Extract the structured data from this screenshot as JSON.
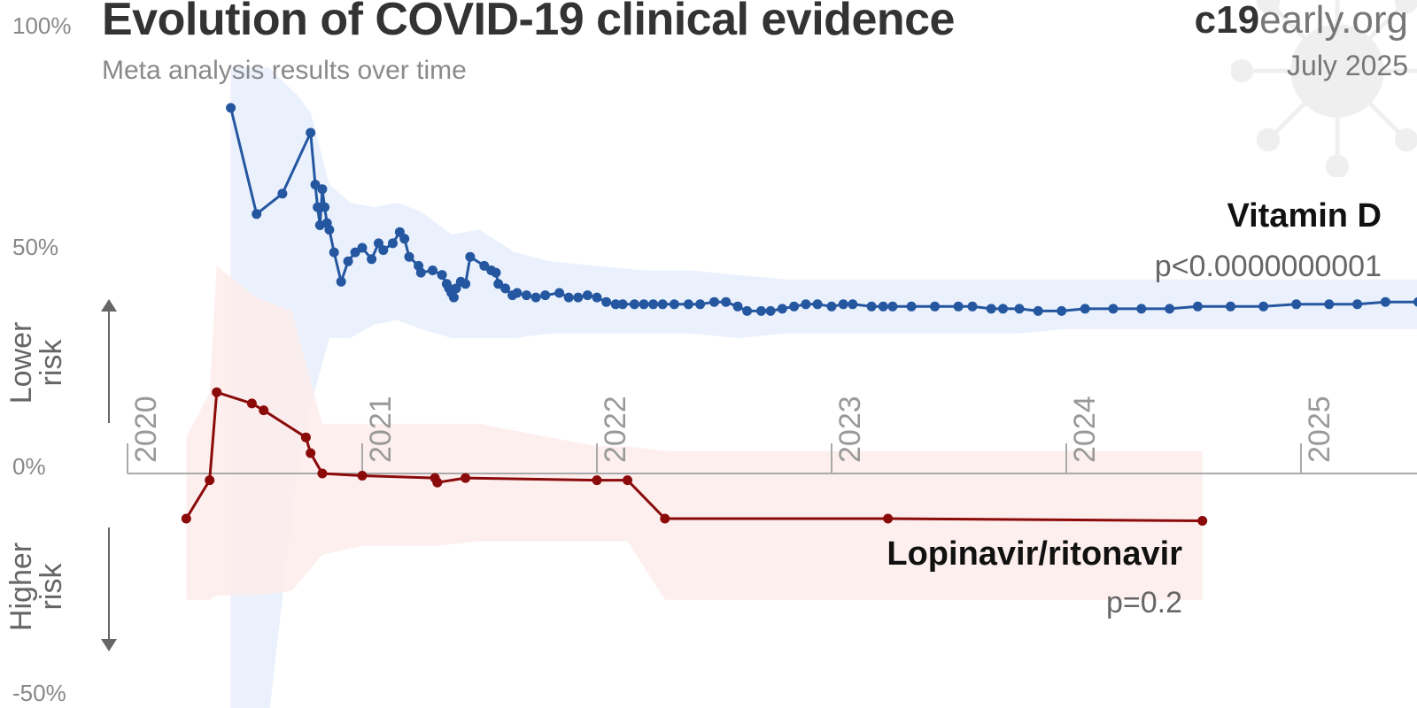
{
  "header": {
    "title": "Evolution of COVID-19 clinical evidence",
    "subtitle": "Meta analysis results over time",
    "brand_bold": "c19",
    "brand_rest": "early.org",
    "date": "July 2025"
  },
  "icons": {
    "watermark": "virus-icon"
  },
  "colors": {
    "vitd_line": "#2457a0",
    "vitd_band": "#e8f0fd",
    "lpv_line": "#8b0a0a",
    "lpv_band": "#fdeceb",
    "axis": "#aaaaaa",
    "text_muted": "#888888"
  },
  "chart_data": {
    "type": "line",
    "title": "Evolution of COVID-19 clinical evidence",
    "subtitle": "Meta analysis results over time",
    "ylim": [
      -50,
      100
    ],
    "y_ticks": [
      "100%",
      "50%",
      "0%",
      "-50%"
    ],
    "y_tick_values": [
      100,
      50,
      0,
      -50
    ],
    "x_ticks": [
      "2020",
      "2021",
      "2022",
      "2023",
      "2024",
      "2025"
    ],
    "x_tick_values": [
      2020,
      2021,
      2022,
      2023,
      2024,
      2025
    ],
    "x_unit": "decimal year",
    "direction_labels": {
      "up": [
        "Lower",
        "risk"
      ],
      "down": [
        "Higher",
        "risk"
      ]
    },
    "grid": false,
    "series": [
      {
        "name": "Vitamin D",
        "p_value": "p<0.0000000001",
        "color": "#2457a0",
        "band_color": "#e8f0fd",
        "points": [
          [
            2020.44,
            81
          ],
          [
            2020.55,
            57.5
          ],
          [
            2020.66,
            62
          ],
          [
            2020.78,
            75.5
          ],
          [
            2020.8,
            64
          ],
          [
            2020.81,
            59
          ],
          [
            2020.82,
            55
          ],
          [
            2020.83,
            63
          ],
          [
            2020.84,
            59
          ],
          [
            2020.85,
            55.5
          ],
          [
            2020.86,
            54
          ],
          [
            2020.88,
            49
          ],
          [
            2020.91,
            42.5
          ],
          [
            2020.94,
            47
          ],
          [
            2020.97,
            49
          ],
          [
            2021.0,
            50
          ],
          [
            2021.04,
            47.5
          ],
          [
            2021.07,
            51
          ],
          [
            2021.09,
            49.5
          ],
          [
            2021.13,
            51
          ],
          [
            2021.16,
            53.5
          ],
          [
            2021.18,
            52
          ],
          [
            2021.2,
            48
          ],
          [
            2021.24,
            46
          ],
          [
            2021.25,
            44.5
          ],
          [
            2021.3,
            45
          ],
          [
            2021.34,
            44
          ],
          [
            2021.36,
            42
          ],
          [
            2021.37,
            41
          ],
          [
            2021.38,
            40
          ],
          [
            2021.39,
            39
          ],
          [
            2021.4,
            41
          ],
          [
            2021.42,
            42.5
          ],
          [
            2021.44,
            42
          ],
          [
            2021.46,
            48
          ],
          [
            2021.52,
            46
          ],
          [
            2021.55,
            45
          ],
          [
            2021.57,
            44.5
          ],
          [
            2021.58,
            42
          ],
          [
            2021.61,
            41
          ],
          [
            2021.64,
            39.5
          ],
          [
            2021.66,
            40
          ],
          [
            2021.7,
            39.5
          ],
          [
            2021.74,
            39
          ],
          [
            2021.78,
            39.5
          ],
          [
            2021.84,
            40
          ],
          [
            2021.88,
            39
          ],
          [
            2021.92,
            39
          ],
          [
            2021.96,
            39.5
          ],
          [
            2022.0,
            39
          ],
          [
            2022.04,
            38
          ],
          [
            2022.08,
            37.5
          ],
          [
            2022.11,
            37.5
          ],
          [
            2022.16,
            37.5
          ],
          [
            2022.2,
            37.5
          ],
          [
            2022.24,
            37.5
          ],
          [
            2022.28,
            37.5
          ],
          [
            2022.33,
            37.5
          ],
          [
            2022.39,
            37.5
          ],
          [
            2022.44,
            37.5
          ],
          [
            2022.5,
            38
          ],
          [
            2022.55,
            38
          ],
          [
            2022.6,
            37
          ],
          [
            2022.64,
            36
          ],
          [
            2022.7,
            36
          ],
          [
            2022.74,
            36
          ],
          [
            2022.79,
            36.5
          ],
          [
            2022.84,
            37
          ],
          [
            2022.89,
            37.5
          ],
          [
            2022.94,
            37.5
          ],
          [
            2023.0,
            37
          ],
          [
            2023.05,
            37.5
          ],
          [
            2023.09,
            37.5
          ],
          [
            2023.17,
            37
          ],
          [
            2023.22,
            37
          ],
          [
            2023.26,
            37
          ],
          [
            2023.34,
            37
          ],
          [
            2023.44,
            37
          ],
          [
            2023.54,
            37
          ],
          [
            2023.6,
            37
          ],
          [
            2023.68,
            36.5
          ],
          [
            2023.73,
            36.5
          ],
          [
            2023.8,
            36.5
          ],
          [
            2023.88,
            36
          ],
          [
            2023.98,
            36
          ],
          [
            2024.08,
            36.5
          ],
          [
            2024.2,
            36.5
          ],
          [
            2024.32,
            36.5
          ],
          [
            2024.44,
            36.5
          ],
          [
            2024.56,
            37
          ],
          [
            2024.7,
            37
          ],
          [
            2024.84,
            37
          ],
          [
            2024.98,
            37.5
          ],
          [
            2025.12,
            37.5
          ],
          [
            2025.24,
            37.5
          ],
          [
            2025.36,
            38
          ],
          [
            2025.5,
            38
          ]
        ],
        "band": [
          [
            2020.44,
            90,
            -55
          ],
          [
            2020.6,
            90,
            -55
          ],
          [
            2020.72,
            84,
            0
          ],
          [
            2020.78,
            80,
            15
          ],
          [
            2020.86,
            64,
            30
          ],
          [
            2020.95,
            60,
            30
          ],
          [
            2021.05,
            59,
            33
          ],
          [
            2021.15,
            60,
            34
          ],
          [
            2021.25,
            58,
            32
          ],
          [
            2021.38,
            53,
            30
          ],
          [
            2021.5,
            54,
            30
          ],
          [
            2021.65,
            49,
            30
          ],
          [
            2021.8,
            47,
            31
          ],
          [
            2022.0,
            46,
            31
          ],
          [
            2022.2,
            45,
            31
          ],
          [
            2022.4,
            45,
            31
          ],
          [
            2022.6,
            44,
            30
          ],
          [
            2022.8,
            43,
            31
          ],
          [
            2023.0,
            43,
            31
          ],
          [
            2023.2,
            43,
            31
          ],
          [
            2023.4,
            43,
            31
          ],
          [
            2023.6,
            43,
            31
          ],
          [
            2023.8,
            43,
            31
          ],
          [
            2024.0,
            43,
            32
          ],
          [
            2024.2,
            43,
            32
          ],
          [
            2024.4,
            43,
            32
          ],
          [
            2024.6,
            43,
            32
          ],
          [
            2024.8,
            43,
            32
          ],
          [
            2025.0,
            43,
            32
          ],
          [
            2025.2,
            43,
            32
          ],
          [
            2025.5,
            43,
            32
          ]
        ]
      },
      {
        "name": "Lopinavir/ritonavir",
        "p_value": "p=0.2",
        "color": "#8b0a0a",
        "band_color": "#fdeceb",
        "points": [
          [
            2020.25,
            -10
          ],
          [
            2020.35,
            -1.5
          ],
          [
            2020.38,
            18
          ],
          [
            2020.53,
            15.5
          ],
          [
            2020.58,
            14
          ],
          [
            2020.76,
            8
          ],
          [
            2020.78,
            4.5
          ],
          [
            2020.83,
            0
          ],
          [
            2021.0,
            -0.5
          ],
          [
            2021.31,
            -1
          ],
          [
            2021.32,
            -2
          ],
          [
            2021.44,
            -1
          ],
          [
            2022.0,
            -1.5
          ],
          [
            2022.13,
            -1.5
          ],
          [
            2022.29,
            -10
          ],
          [
            2023.24,
            -10
          ],
          [
            2024.58,
            -10.5
          ]
        ],
        "band": [
          [
            2020.25,
            -28,
            8
          ],
          [
            2020.35,
            -28,
            18
          ],
          [
            2020.38,
            -27,
            46
          ],
          [
            2020.55,
            -27,
            39
          ],
          [
            2020.7,
            -26,
            36
          ],
          [
            2020.83,
            -18,
            11
          ],
          [
            2021.0,
            -16,
            11
          ],
          [
            2021.3,
            -16,
            11
          ],
          [
            2021.32,
            -16,
            11
          ],
          [
            2021.5,
            -15,
            11
          ],
          [
            2022.0,
            -15,
            6
          ],
          [
            2022.13,
            -15,
            6
          ],
          [
            2022.29,
            -28,
            5
          ],
          [
            2023.24,
            -28,
            5
          ],
          [
            2024.58,
            -28,
            5
          ]
        ]
      }
    ]
  }
}
